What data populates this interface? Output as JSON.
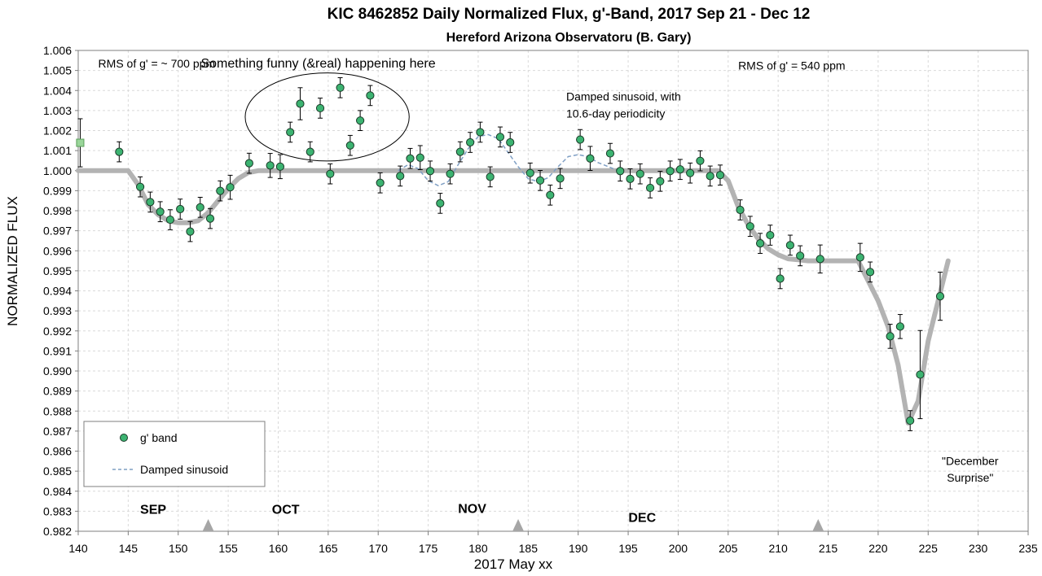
{
  "chart_data": {
    "type": "scatter",
    "title": "KIC 8462852 Daily  Normalized Flux, g'-Band, 2017 Sep 21 - Dec 12",
    "subtitle": "Hereford Arizona Observatoru (B. Gary)",
    "xlabel": "2017 May xx",
    "ylabel": "NORMALIZED FLUX",
    "xlim": [
      140,
      235
    ],
    "ylim": [
      0.982,
      1.006
    ],
    "xticks": [
      "140",
      "145",
      "150",
      "155",
      "160",
      "165",
      "170",
      "175",
      "180",
      "185",
      "190",
      "195",
      "200",
      "205",
      "210",
      "215",
      "220",
      "225",
      "230",
      "235"
    ],
    "yticks": [
      "0.982",
      "0.983",
      "0.984",
      "0.985",
      "0.986",
      "0.987",
      "0.988",
      "0.989",
      "0.990",
      "0.991",
      "0.992",
      "0.993",
      "0.994",
      "0.995",
      "0.996",
      "0.997",
      "0.998",
      "0.999",
      "1.000",
      "1.001",
      "1.002",
      "1.003",
      "1.004",
      "1.005",
      "1.006"
    ],
    "grid": true,
    "legend": {
      "placement": "bottom-left",
      "entries": [
        {
          "label": "g' band",
          "marker": "circle"
        },
        {
          "label": "Damped sinusoid",
          "marker": "dashed-line"
        }
      ]
    },
    "colors": {
      "points_fill": "#3cb371",
      "points_edge": "#1a3a28",
      "model_line": "#b3b3b3",
      "sinusoid": "#7f9fc4",
      "square_fill": "#9ad69a",
      "grid": "#d9d9d9"
    },
    "series": [
      {
        "name": "g' band",
        "marker": "circle",
        "points": [
          {
            "x": 144.1,
            "y": 1.00094,
            "err": 0.0005
          },
          {
            "x": 146.2,
            "y": 0.99919,
            "err": 0.0005
          },
          {
            "x": 147.2,
            "y": 0.99843,
            "err": 0.0005
          },
          {
            "x": 148.2,
            "y": 0.99795,
            "err": 0.0005
          },
          {
            "x": 149.2,
            "y": 0.99755,
            "err": 0.0005
          },
          {
            "x": 150.2,
            "y": 0.99808,
            "err": 0.0005
          },
          {
            "x": 151.2,
            "y": 0.99696,
            "err": 0.0005
          },
          {
            "x": 152.2,
            "y": 0.99817,
            "err": 0.0005
          },
          {
            "x": 153.2,
            "y": 0.99761,
            "err": 0.0005
          },
          {
            "x": 154.2,
            "y": 0.99899,
            "err": 0.0005
          },
          {
            "x": 155.2,
            "y": 0.99917,
            "err": 0.0006
          },
          {
            "x": 157.1,
            "y": 1.00037,
            "err": 0.0005
          },
          {
            "x": 159.2,
            "y": 1.00026,
            "err": 0.0006
          },
          {
            "x": 160.2,
            "y": 1.0002,
            "err": 0.0006
          },
          {
            "x": 161.2,
            "y": 1.00192,
            "err": 0.0005
          },
          {
            "x": 162.2,
            "y": 1.00334,
            "err": 0.0008
          },
          {
            "x": 163.2,
            "y": 1.00094,
            "err": 0.0005
          },
          {
            "x": 164.2,
            "y": 1.00312,
            "err": 0.0005
          },
          {
            "x": 165.2,
            "y": 0.99984,
            "err": 0.0005
          },
          {
            "x": 166.2,
            "y": 1.00414,
            "err": 0.0005
          },
          {
            "x": 167.2,
            "y": 1.00126,
            "err": 0.0005
          },
          {
            "x": 168.2,
            "y": 1.0025,
            "err": 0.0005
          },
          {
            "x": 169.2,
            "y": 1.00375,
            "err": 0.0005
          },
          {
            "x": 170.2,
            "y": 0.99939,
            "err": 0.0005
          },
          {
            "x": 172.2,
            "y": 0.99973,
            "err": 0.0005
          },
          {
            "x": 173.2,
            "y": 1.00061,
            "err": 0.0005
          },
          {
            "x": 174.2,
            "y": 1.00065,
            "err": 0.0006
          },
          {
            "x": 175.2,
            "y": 0.99998,
            "err": 0.0005
          },
          {
            "x": 176.2,
            "y": 0.99837,
            "err": 0.0005
          },
          {
            "x": 177.2,
            "y": 0.99984,
            "err": 0.0005
          },
          {
            "x": 178.2,
            "y": 1.00094,
            "err": 0.0005
          },
          {
            "x": 179.2,
            "y": 1.00141,
            "err": 0.0005
          },
          {
            "x": 180.2,
            "y": 1.00192,
            "err": 0.0005
          },
          {
            "x": 181.2,
            "y": 0.99969,
            "err": 0.0005
          },
          {
            "x": 182.2,
            "y": 1.00168,
            "err": 0.0005
          },
          {
            "x": 183.2,
            "y": 1.00141,
            "err": 0.0005
          },
          {
            "x": 185.2,
            "y": 0.99988,
            "err": 0.0005
          },
          {
            "x": 186.2,
            "y": 0.99951,
            "err": 0.0005
          },
          {
            "x": 187.2,
            "y": 0.99878,
            "err": 0.0005
          },
          {
            "x": 188.2,
            "y": 0.99961,
            "err": 0.0005
          },
          {
            "x": 190.2,
            "y": 1.00155,
            "err": 0.0005
          },
          {
            "x": 191.2,
            "y": 1.00061,
            "err": 0.0006
          },
          {
            "x": 193.2,
            "y": 1.00086,
            "err": 0.0005
          },
          {
            "x": 194.2,
            "y": 0.99998,
            "err": 0.0005
          },
          {
            "x": 195.2,
            "y": 0.99959,
            "err": 0.0005
          },
          {
            "x": 196.2,
            "y": 0.99984,
            "err": 0.0005
          },
          {
            "x": 197.2,
            "y": 0.99914,
            "err": 0.0005
          },
          {
            "x": 198.2,
            "y": 0.99947,
            "err": 0.0005
          },
          {
            "x": 199.2,
            "y": 0.99998,
            "err": 0.0005
          },
          {
            "x": 200.2,
            "y": 1.00006,
            "err": 0.0005
          },
          {
            "x": 201.2,
            "y": 0.99988,
            "err": 0.0005
          },
          {
            "x": 202.2,
            "y": 1.00049,
            "err": 0.0005
          },
          {
            "x": 203.2,
            "y": 0.99973,
            "err": 0.0005
          },
          {
            "x": 204.2,
            "y": 0.99978,
            "err": 0.0005
          },
          {
            "x": 206.2,
            "y": 0.99804,
            "err": 0.0005
          },
          {
            "x": 207.2,
            "y": 0.99722,
            "err": 0.0005
          },
          {
            "x": 208.2,
            "y": 0.99637,
            "err": 0.0005
          },
          {
            "x": 209.2,
            "y": 0.99678,
            "err": 0.0005
          },
          {
            "x": 210.2,
            "y": 0.99461,
            "err": 0.0005
          },
          {
            "x": 211.2,
            "y": 0.99628,
            "err": 0.0005
          },
          {
            "x": 212.2,
            "y": 0.99575,
            "err": 0.0005
          },
          {
            "x": 214.2,
            "y": 0.99559,
            "err": 0.0007
          },
          {
            "x": 218.2,
            "y": 0.99567,
            "err": 0.0007
          },
          {
            "x": 219.2,
            "y": 0.99494,
            "err": 0.0005
          },
          {
            "x": 221.2,
            "y": 0.99173,
            "err": 0.0006
          },
          {
            "x": 222.2,
            "y": 0.99222,
            "err": 0.0006
          },
          {
            "x": 223.2,
            "y": 0.98752,
            "err": 0.0005
          },
          {
            "x": 224.2,
            "y": 0.98982,
            "err": 0.0022
          },
          {
            "x": 226.2,
            "y": 0.99373,
            "err": 0.0012
          }
        ]
      },
      {
        "name": "",
        "marker": "square",
        "points": [
          {
            "x": 140.2,
            "y": 1.00139,
            "err": 0.0012
          }
        ]
      },
      {
        "name": "model",
        "marker": "thick-line",
        "x": [
          140,
          145,
          146,
          147,
          148,
          149,
          150,
          151,
          152,
          153,
          154,
          155,
          156,
          157,
          158,
          160,
          204,
          205,
          206,
          207,
          208,
          209,
          210,
          211,
          212,
          213,
          218,
          219,
          220,
          221,
          222,
          223,
          224,
          225,
          226,
          227
        ],
        "y": [
          1.0,
          1.0,
          0.9993,
          0.9983,
          0.9978,
          0.9975,
          0.9974,
          0.9974,
          0.9975,
          0.9979,
          0.9985,
          0.9991,
          0.9996,
          0.9999,
          1.0,
          1.0,
          1.0,
          0.9995,
          0.9982,
          0.9973,
          0.9966,
          0.9961,
          0.9958,
          0.9956,
          0.99555,
          0.9955,
          0.9955,
          0.9945,
          0.9935,
          0.9922,
          0.9903,
          0.9874,
          0.9885,
          0.9915,
          0.9935,
          0.9955
        ]
      },
      {
        "name": "Damped sinusoid",
        "marker": "dashed-line",
        "x": [
          172,
          173,
          174,
          175,
          176,
          177,
          178,
          179,
          180,
          181,
          182,
          183,
          184,
          185,
          186,
          187,
          188,
          189,
          190,
          191,
          192,
          193,
          194
        ],
        "y": [
          1.0,
          1.0003,
          1.0001,
          0.9995,
          0.99925,
          0.99945,
          1.0003,
          1.0011,
          1.0017,
          1.0018,
          1.0016,
          1.0009,
          1.0002,
          0.9996,
          0.99945,
          0.99965,
          1.0002,
          1.0007,
          1.0008,
          1.0007,
          1.0004,
          1.0002,
          1.0
        ]
      }
    ],
    "annotations": [
      {
        "text": "RMS of g' = ~ 700 ppm",
        "x": 142,
        "y": 1.00515
      },
      {
        "text": "Something funny (&real) happening here",
        "x": 164,
        "y": 1.00515
      },
      {
        "text": "Damped sinusoid, with",
        "x": 188.8,
        "y": 1.0035
      },
      {
        "text": "10.6-day periodicity",
        "x": 188.8,
        "y": 1.00265
      },
      {
        "text": "RMS of g' = 540 ppm",
        "x": 206,
        "y": 1.00505
      },
      {
        "text": "\"December",
        "x": 229.2,
        "y": 0.98531
      },
      {
        "text": "Surprise\"",
        "x": 229.2,
        "y": 0.98448
      }
    ],
    "ellipse": {
      "cx": 164.9,
      "cy": 1.00268,
      "rx": 8.2,
      "ry": 0.0022
    },
    "month_labels": [
      {
        "text": "SEP",
        "x": 155,
        "y": 0.98288
      },
      {
        "text": "OCT",
        "x": 181.5,
        "y": 0.98288
      },
      {
        "text": "NOV",
        "x": 218.8,
        "y": 0.98291
      },
      {
        "text": "DEC",
        "x": 252.8,
        "y": 0.98247
      }
    ],
    "month_markers": [
      153,
      184,
      214
    ]
  }
}
